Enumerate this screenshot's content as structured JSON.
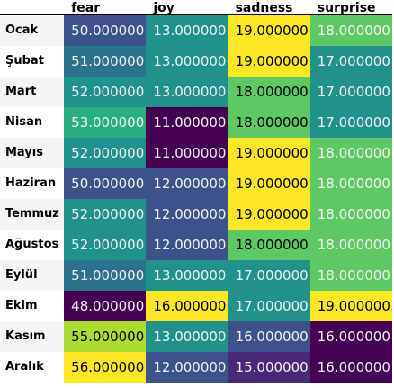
{
  "chart_data": {
    "type": "heatmap",
    "columns": [
      "fear",
      "joy",
      "sadness",
      "surprise"
    ],
    "rows": [
      "Ocak",
      "Şubat",
      "Mart",
      "Nisan",
      "Mayıs",
      "Haziran",
      "Temmuz",
      "Ağustos",
      "Eylül",
      "Ekim",
      "Kasım",
      "Aralık"
    ],
    "values": [
      [
        50,
        13,
        19,
        18
      ],
      [
        51,
        13,
        19,
        17
      ],
      [
        52,
        13,
        18,
        17
      ],
      [
        53,
        11,
        18,
        17
      ],
      [
        52,
        11,
        19,
        18
      ],
      [
        50,
        12,
        19,
        18
      ],
      [
        52,
        12,
        19,
        18
      ],
      [
        52,
        12,
        18,
        18
      ],
      [
        51,
        13,
        17,
        18
      ],
      [
        48,
        16,
        17,
        19
      ],
      [
        55,
        13,
        16,
        16
      ],
      [
        56,
        12,
        15,
        16
      ]
    ],
    "cell_labels": [
      [
        "50.000000",
        "13.000000",
        "19.000000",
        "18.000000"
      ],
      [
        "51.000000",
        "13.000000",
        "19.000000",
        "17.000000"
      ],
      [
        "52.000000",
        "13.000000",
        "18.000000",
        "17.000000"
      ],
      [
        "53.000000",
        "11.000000",
        "18.000000",
        "17.000000"
      ],
      [
        "52.000000",
        "11.000000",
        "19.000000",
        "18.000000"
      ],
      [
        "50.000000",
        "12.000000",
        "19.000000",
        "18.000000"
      ],
      [
        "52.000000",
        "12.000000",
        "19.000000",
        "18.000000"
      ],
      [
        "52.000000",
        "12.000000",
        "18.000000",
        "18.000000"
      ],
      [
        "51.000000",
        "13.000000",
        "17.000000",
        "18.000000"
      ],
      [
        "48.000000",
        "16.000000",
        "17.000000",
        "19.000000"
      ],
      [
        "55.000000",
        "13.000000",
        "16.000000",
        "16.000000"
      ],
      [
        "56.000000",
        "12.000000",
        "15.000000",
        "16.000000"
      ]
    ],
    "colormap": "viridis",
    "color_scale": "per-column",
    "colors": [
      [
        "#3b528b",
        "#21918c",
        "#fde725",
        "#5ec962"
      ],
      [
        "#2c728e",
        "#21918c",
        "#fde725",
        "#21918c"
      ],
      [
        "#21918c",
        "#21918c",
        "#5ec962",
        "#21918c"
      ],
      [
        "#28ae80",
        "#440154",
        "#5ec962",
        "#21918c"
      ],
      [
        "#21918c",
        "#440154",
        "#fde725",
        "#5ec962"
      ],
      [
        "#3b528b",
        "#3b528b",
        "#fde725",
        "#5ec962"
      ],
      [
        "#21918c",
        "#3b528b",
        "#fde725",
        "#5ec962"
      ],
      [
        "#21918c",
        "#3b528b",
        "#5ec962",
        "#5ec962"
      ],
      [
        "#2c728e",
        "#21918c",
        "#21918c",
        "#5ec962"
      ],
      [
        "#440154",
        "#fde725",
        "#21918c",
        "#fde725"
      ],
      [
        "#addc30",
        "#21918c",
        "#3b528b",
        "#440154"
      ],
      [
        "#fde725",
        "#3b528b",
        "#482878",
        "#440154"
      ]
    ],
    "text_colors": [
      [
        "#f1f1f1",
        "#f1f1f1",
        "#000000",
        "#f1f1f1"
      ],
      [
        "#f1f1f1",
        "#f1f1f1",
        "#000000",
        "#f1f1f1"
      ],
      [
        "#f1f1f1",
        "#f1f1f1",
        "#000000",
        "#f1f1f1"
      ],
      [
        "#f1f1f1",
        "#f1f1f1",
        "#000000",
        "#f1f1f1"
      ],
      [
        "#f1f1f1",
        "#f1f1f1",
        "#000000",
        "#f1f1f1"
      ],
      [
        "#f1f1f1",
        "#f1f1f1",
        "#000000",
        "#f1f1f1"
      ],
      [
        "#f1f1f1",
        "#f1f1f1",
        "#000000",
        "#f1f1f1"
      ],
      [
        "#f1f1f1",
        "#f1f1f1",
        "#000000",
        "#f1f1f1"
      ],
      [
        "#f1f1f1",
        "#f1f1f1",
        "#f1f1f1",
        "#f1f1f1"
      ],
      [
        "#f1f1f1",
        "#000000",
        "#f1f1f1",
        "#000000"
      ],
      [
        "#000000",
        "#f1f1f1",
        "#f1f1f1",
        "#f1f1f1"
      ],
      [
        "#000000",
        "#f1f1f1",
        "#f1f1f1",
        "#f1f1f1"
      ]
    ]
  }
}
